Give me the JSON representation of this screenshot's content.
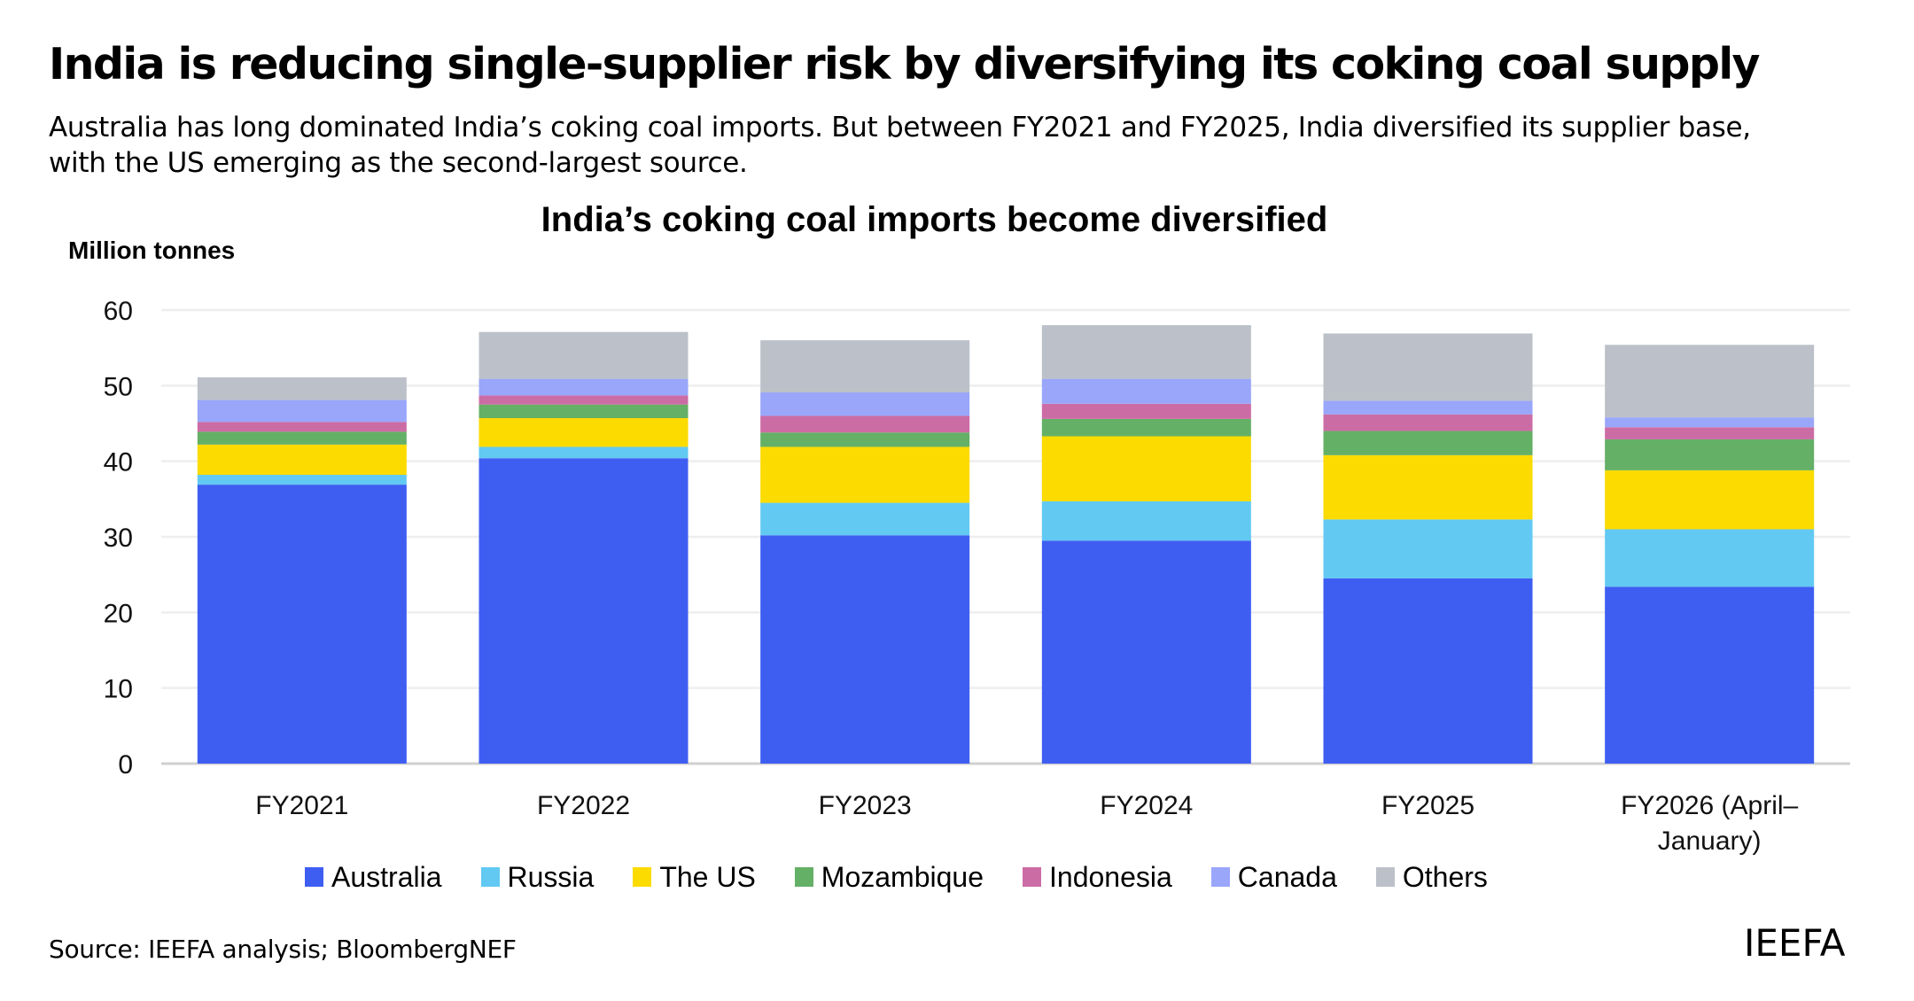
{
  "header": {
    "headline": "India is reducing single-supplier risk by diversifying its coking coal supply",
    "subtitle": "Australia has long dominated India’s coking coal imports. But between FY2021 and FY2025, India diversified its supplier base, with the US emerging as the second-largest source."
  },
  "footer": {
    "source": "Source: IEEFA analysis; BloombergNEF",
    "logo": "IEEFA"
  },
  "chart_data": {
    "type": "bar",
    "stacked": true,
    "title": "India’s coking coal imports become diversified",
    "xlabel": "",
    "ylabel": "Million tonnes",
    "ylim": [
      0,
      60
    ],
    "yticks": [
      0,
      10,
      20,
      30,
      40,
      50,
      60
    ],
    "grid": true,
    "legend_position": "bottom",
    "categories": [
      "FY2021",
      "FY2022",
      "FY2023",
      "FY2024",
      "FY2025",
      "FY2026 (April–January)"
    ],
    "category_lines": [
      [
        "FY2021"
      ],
      [
        "FY2022"
      ],
      [
        "FY2023"
      ],
      [
        "FY2024"
      ],
      [
        "FY2025"
      ],
      [
        "FY2026 (April–",
        "January)"
      ]
    ],
    "series": [
      {
        "name": "Australia",
        "color": "#3e5ef2",
        "values": [
          36.9,
          40.4,
          30.2,
          29.5,
          24.5,
          23.4
        ]
      },
      {
        "name": "Russia",
        "color": "#62c9f2",
        "values": [
          1.3,
          1.5,
          4.3,
          5.2,
          7.8,
          7.6
        ]
      },
      {
        "name": "The US",
        "color": "#fcdb00",
        "values": [
          4.0,
          3.8,
          7.4,
          8.6,
          8.5,
          7.8
        ]
      },
      {
        "name": "Mozambique",
        "color": "#64b066",
        "values": [
          1.7,
          1.8,
          1.9,
          2.3,
          3.2,
          4.1
        ]
      },
      {
        "name": "Indonesia",
        "color": "#cc6ca5",
        "values": [
          1.3,
          1.2,
          2.2,
          2.0,
          2.2,
          1.6
        ]
      },
      {
        "name": "Canada",
        "color": "#99a6fa",
        "values": [
          2.9,
          2.2,
          3.1,
          3.3,
          1.8,
          1.3
        ]
      },
      {
        "name": "Others",
        "color": "#bcc1c9",
        "values": [
          3.0,
          6.2,
          6.9,
          7.1,
          8.9,
          9.6
        ]
      }
    ]
  }
}
